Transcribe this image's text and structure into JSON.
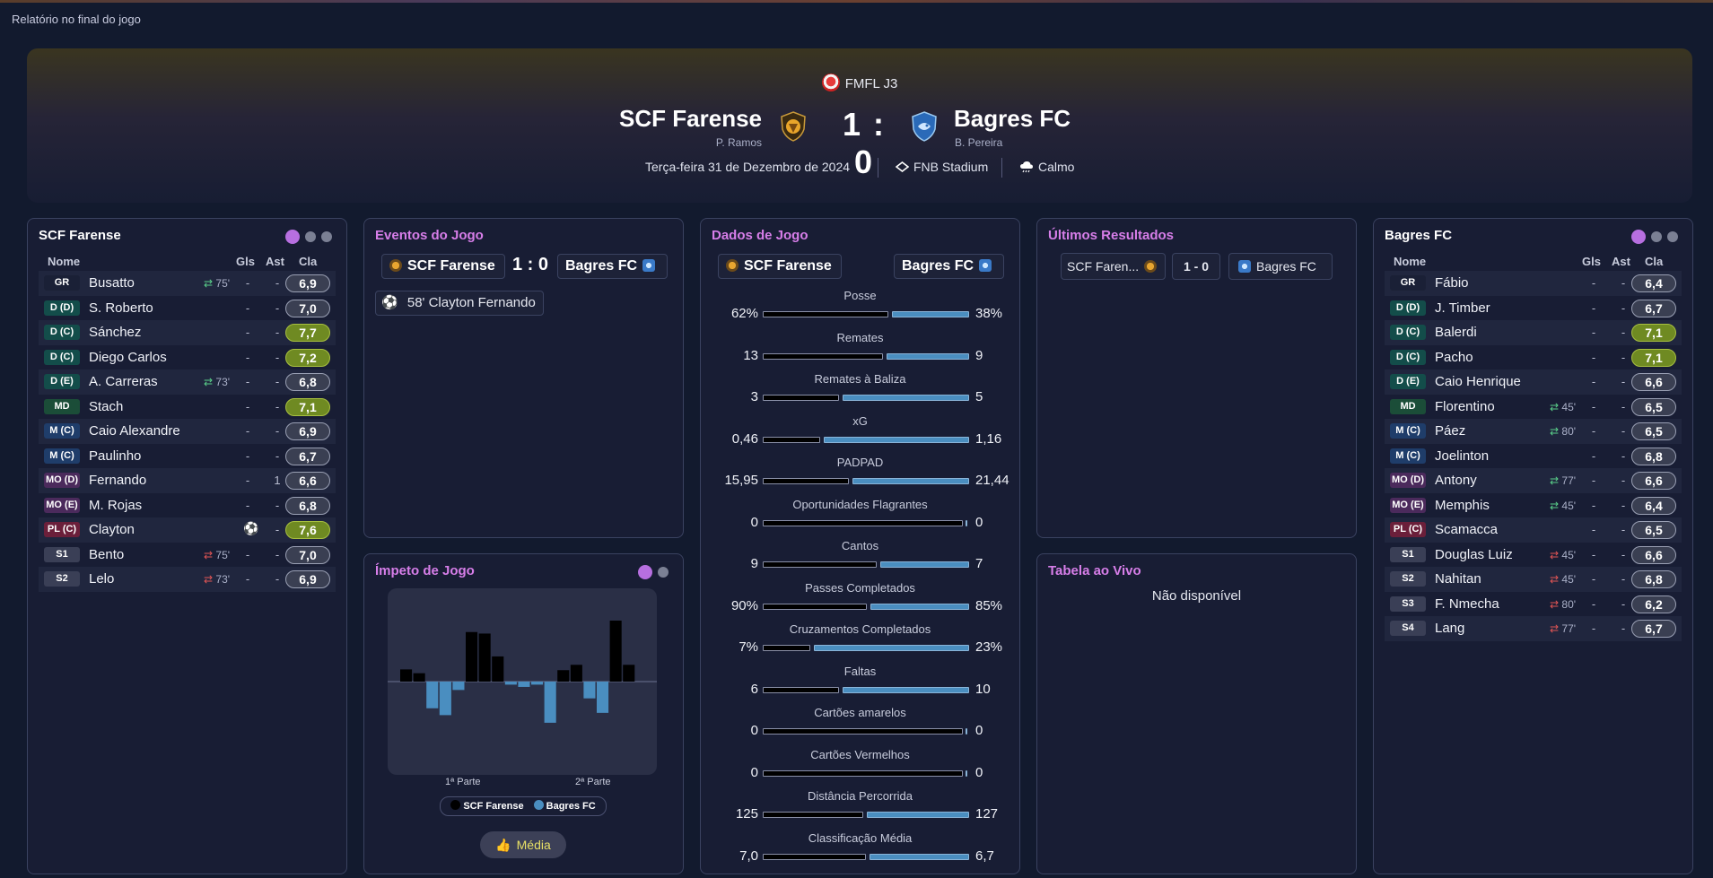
{
  "page_title": "Relatório no final do jogo",
  "match": {
    "competition": "FMFL J3",
    "home": {
      "name": "SCF Farense",
      "coach": "P. Ramos"
    },
    "away": {
      "name": "Bagres FC",
      "coach": "B. Pereira"
    },
    "score": "1 : 0",
    "date": "Terça-feira 31 de Dezembro de 2024",
    "stadium": "FNB Stadium",
    "weather": "Calmo"
  },
  "lineup_headers": {
    "name": "Nome",
    "gls": "Gls",
    "ast": "Ast",
    "cla": "Cla"
  },
  "home_lineup": {
    "title": "SCF Farense",
    "players": [
      {
        "pos": "GR",
        "posclass": "gr",
        "name": "Busatto",
        "sub": "75'",
        "subdir": "in",
        "gls": "-",
        "ast": "-",
        "cla": "6,9",
        "hi": false
      },
      {
        "pos": "D (D)",
        "posclass": "def",
        "name": "S. Roberto",
        "sub": "",
        "subdir": "",
        "gls": "-",
        "ast": "-",
        "cla": "7,0",
        "hi": false
      },
      {
        "pos": "D (C)",
        "posclass": "def",
        "name": "Sánchez",
        "sub": "",
        "subdir": "",
        "gls": "-",
        "ast": "-",
        "cla": "7,7",
        "hi": true
      },
      {
        "pos": "D (C)",
        "posclass": "def",
        "name": "Diego Carlos",
        "sub": "",
        "subdir": "",
        "gls": "-",
        "ast": "-",
        "cla": "7,2",
        "hi": true
      },
      {
        "pos": "D (E)",
        "posclass": "def",
        "name": "A. Carreras",
        "sub": "73'",
        "subdir": "in",
        "gls": "-",
        "ast": "-",
        "cla": "6,8",
        "hi": false
      },
      {
        "pos": "MD",
        "posclass": "md",
        "name": "Stach",
        "sub": "",
        "subdir": "",
        "gls": "-",
        "ast": "-",
        "cla": "7,1",
        "hi": true
      },
      {
        "pos": "M (C)",
        "posclass": "mid",
        "name": "Caio Alexandre",
        "sub": "",
        "subdir": "",
        "gls": "-",
        "ast": "-",
        "cla": "6,9",
        "hi": false
      },
      {
        "pos": "M (C)",
        "posclass": "mid",
        "name": "Paulinho",
        "sub": "",
        "subdir": "",
        "gls": "-",
        "ast": "-",
        "cla": "6,7",
        "hi": false
      },
      {
        "pos": "MO (D)",
        "posclass": "mo",
        "name": "Fernando",
        "sub": "",
        "subdir": "",
        "gls": "-",
        "ast": "1",
        "cla": "6,6",
        "hi": false
      },
      {
        "pos": "MO (E)",
        "posclass": "mo",
        "name": "M. Rojas",
        "sub": "",
        "subdir": "",
        "gls": "-",
        "ast": "-",
        "cla": "6,8",
        "hi": false
      },
      {
        "pos": "PL (C)",
        "posclass": "pl",
        "name": "Clayton",
        "sub": "",
        "subdir": "",
        "gls": "goal",
        "ast": "-",
        "cla": "7,6",
        "hi": true
      },
      {
        "pos": "S1",
        "posclass": "sub",
        "name": "Bento",
        "sub": "75'",
        "subdir": "out",
        "gls": "-",
        "ast": "-",
        "cla": "7,0",
        "hi": false
      },
      {
        "pos": "S2",
        "posclass": "sub",
        "name": "Lelo",
        "sub": "73'",
        "subdir": "out",
        "gls": "-",
        "ast": "-",
        "cla": "6,9",
        "hi": false
      }
    ]
  },
  "away_lineup": {
    "title": "Bagres FC",
    "players": [
      {
        "pos": "GR",
        "posclass": "gr",
        "name": "Fábio",
        "sub": "",
        "subdir": "",
        "gls": "-",
        "ast": "-",
        "cla": "6,4",
        "hi": false
      },
      {
        "pos": "D (D)",
        "posclass": "def",
        "name": "J. Timber",
        "sub": "",
        "subdir": "",
        "gls": "-",
        "ast": "-",
        "cla": "6,7",
        "hi": false
      },
      {
        "pos": "D (C)",
        "posclass": "def",
        "name": "Balerdi",
        "sub": "",
        "subdir": "",
        "gls": "-",
        "ast": "-",
        "cla": "7,1",
        "hi": true
      },
      {
        "pos": "D (C)",
        "posclass": "def",
        "name": "Pacho",
        "sub": "",
        "subdir": "",
        "gls": "-",
        "ast": "-",
        "cla": "7,1",
        "hi": true
      },
      {
        "pos": "D (E)",
        "posclass": "def",
        "name": "Caio Henrique",
        "sub": "",
        "subdir": "",
        "gls": "-",
        "ast": "-",
        "cla": "6,6",
        "hi": false
      },
      {
        "pos": "MD",
        "posclass": "md",
        "name": "Florentino",
        "sub": "45'",
        "subdir": "in",
        "gls": "-",
        "ast": "-",
        "cla": "6,5",
        "hi": false
      },
      {
        "pos": "M (C)",
        "posclass": "mid",
        "name": "Páez",
        "sub": "80'",
        "subdir": "in",
        "gls": "-",
        "ast": "-",
        "cla": "6,5",
        "hi": false
      },
      {
        "pos": "M (C)",
        "posclass": "mid",
        "name": "Joelinton",
        "sub": "",
        "subdir": "",
        "gls": "-",
        "ast": "-",
        "cla": "6,8",
        "hi": false
      },
      {
        "pos": "MO (D)",
        "posclass": "mo",
        "name": "Antony",
        "sub": "77'",
        "subdir": "in",
        "gls": "-",
        "ast": "-",
        "cla": "6,6",
        "hi": false
      },
      {
        "pos": "MO (E)",
        "posclass": "mo",
        "name": "Memphis",
        "sub": "45'",
        "subdir": "in",
        "gls": "-",
        "ast": "-",
        "cla": "6,4",
        "hi": false
      },
      {
        "pos": "PL (C)",
        "posclass": "pl",
        "name": "Scamacca",
        "sub": "",
        "subdir": "",
        "gls": "-",
        "ast": "-",
        "cla": "6,5",
        "hi": false
      },
      {
        "pos": "S1",
        "posclass": "sub",
        "name": "Douglas Luiz",
        "sub": "45'",
        "subdir": "out",
        "gls": "-",
        "ast": "-",
        "cla": "6,6",
        "hi": false
      },
      {
        "pos": "S2",
        "posclass": "sub",
        "name": "Nahitan",
        "sub": "45'",
        "subdir": "out",
        "gls": "-",
        "ast": "-",
        "cla": "6,8",
        "hi": false
      },
      {
        "pos": "S3",
        "posclass": "sub",
        "name": "F. Nmecha",
        "sub": "80'",
        "subdir": "out",
        "gls": "-",
        "ast": "-",
        "cla": "6,2",
        "hi": false
      },
      {
        "pos": "S4",
        "posclass": "sub",
        "name": "Lang",
        "sub": "77'",
        "subdir": "out",
        "gls": "-",
        "ast": "-",
        "cla": "6,7",
        "hi": false
      }
    ]
  },
  "events": {
    "title": "Eventos do Jogo",
    "score": "1 : 0",
    "items": [
      {
        "minute": "58'",
        "player": "Clayton Fernando"
      }
    ]
  },
  "momentum": {
    "title": "Ímpeto de Jogo",
    "half1": "1ª Parte",
    "half2": "2ª Parte",
    "legend_home": "SCF Farense",
    "legend_away": "Bagres FC",
    "button": "Média",
    "home_color": "#000000",
    "away_color": "#4a8ec0",
    "values": [
      0.16,
      0.11,
      -0.35,
      -0.44,
      -0.11,
      0.65,
      0.63,
      0.33,
      -0.04,
      -0.07,
      -0.04,
      -0.54,
      0.15,
      0.22,
      -0.22,
      -0.41,
      0.8,
      0.22
    ]
  },
  "stats": {
    "title": "Dados de Jogo",
    "items": [
      {
        "label": "Posse",
        "home": "62%",
        "away": "38%",
        "hv": 62,
        "av": 38
      },
      {
        "label": "Remates",
        "home": "13",
        "away": "9",
        "hv": 13,
        "av": 9
      },
      {
        "label": "Remates à Baliza",
        "home": "3",
        "away": "5",
        "hv": 3,
        "av": 5
      },
      {
        "label": "xG",
        "home": "0,46",
        "away": "1,16",
        "hv": 0.46,
        "av": 1.16
      },
      {
        "label": "PADPAD",
        "home": "15,95",
        "away": "21,44",
        "hv": 15.95,
        "av": 21.44
      },
      {
        "label": "Oportunidades Flagrantes",
        "home": "0",
        "away": "0",
        "hv": 0,
        "av": 0
      },
      {
        "label": "Cantos",
        "home": "9",
        "away": "7",
        "hv": 9,
        "av": 7
      },
      {
        "label": "Passes Completados",
        "home": "90%",
        "away": "85%",
        "hv": 90,
        "av": 85
      },
      {
        "label": "Cruzamentos Completados",
        "home": "7%",
        "away": "23%",
        "hv": 7,
        "av": 23
      },
      {
        "label": "Faltas",
        "home": "6",
        "away": "10",
        "hv": 6,
        "av": 10
      },
      {
        "label": "Cartões amarelos",
        "home": "0",
        "away": "0",
        "hv": 0,
        "av": 0
      },
      {
        "label": "Cartões Vermelhos",
        "home": "0",
        "away": "0",
        "hv": 0,
        "av": 0
      },
      {
        "label": "Distância Percorrida",
        "home": "125",
        "away": "127",
        "hv": 125,
        "av": 127
      },
      {
        "label": "Classificação Média",
        "home": "7,0",
        "away": "6,7",
        "hv": 7.0,
        "av": 6.7
      }
    ]
  },
  "recent": {
    "title": "Últimos Resultados",
    "home": "SCF Faren...",
    "score": "1 - 0",
    "away": "Bagres FC"
  },
  "live_table": {
    "title": "Tabela ao Vivo",
    "message": "Não disponível"
  }
}
